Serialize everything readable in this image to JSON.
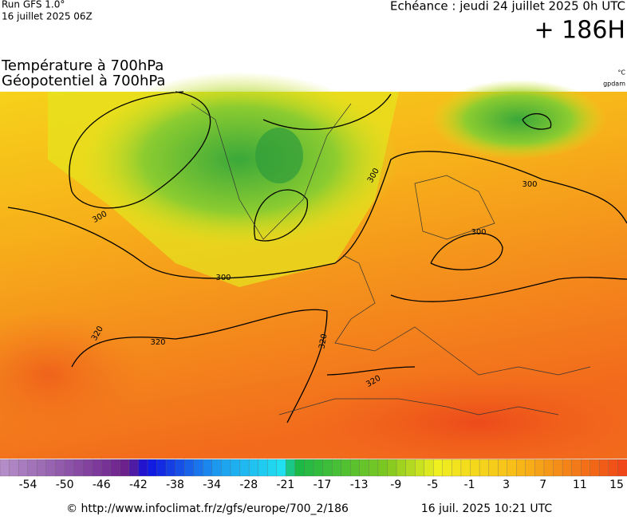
{
  "header": {
    "run": "Run GFS 1.0°",
    "run_date": "16 juillet 2025 06Z",
    "valid": "Echéance : jeudi 24 juillet 2025 0h UTC",
    "lead": "+ 186H",
    "title_1": "Température à 700hPa",
    "title_2": "Géopotentiel à 700hPa",
    "unit_1": "°C",
    "unit_2": "gpdam"
  },
  "contour_labels": [
    300,
    300,
    300,
    300,
    300,
    320,
    320,
    320,
    320
  ],
  "scale": {
    "ticks": [
      -54,
      -50,
      -46,
      -42,
      -38,
      -34,
      -28,
      -21,
      -17,
      -13,
      -9,
      -5,
      -1,
      3,
      7,
      11,
      15
    ]
  },
  "footer": {
    "source": "© http://www.infoclimat.fr/z/gfs/europe/700_2/186",
    "generated": "16 juil. 2025 10:21 UTC"
  }
}
